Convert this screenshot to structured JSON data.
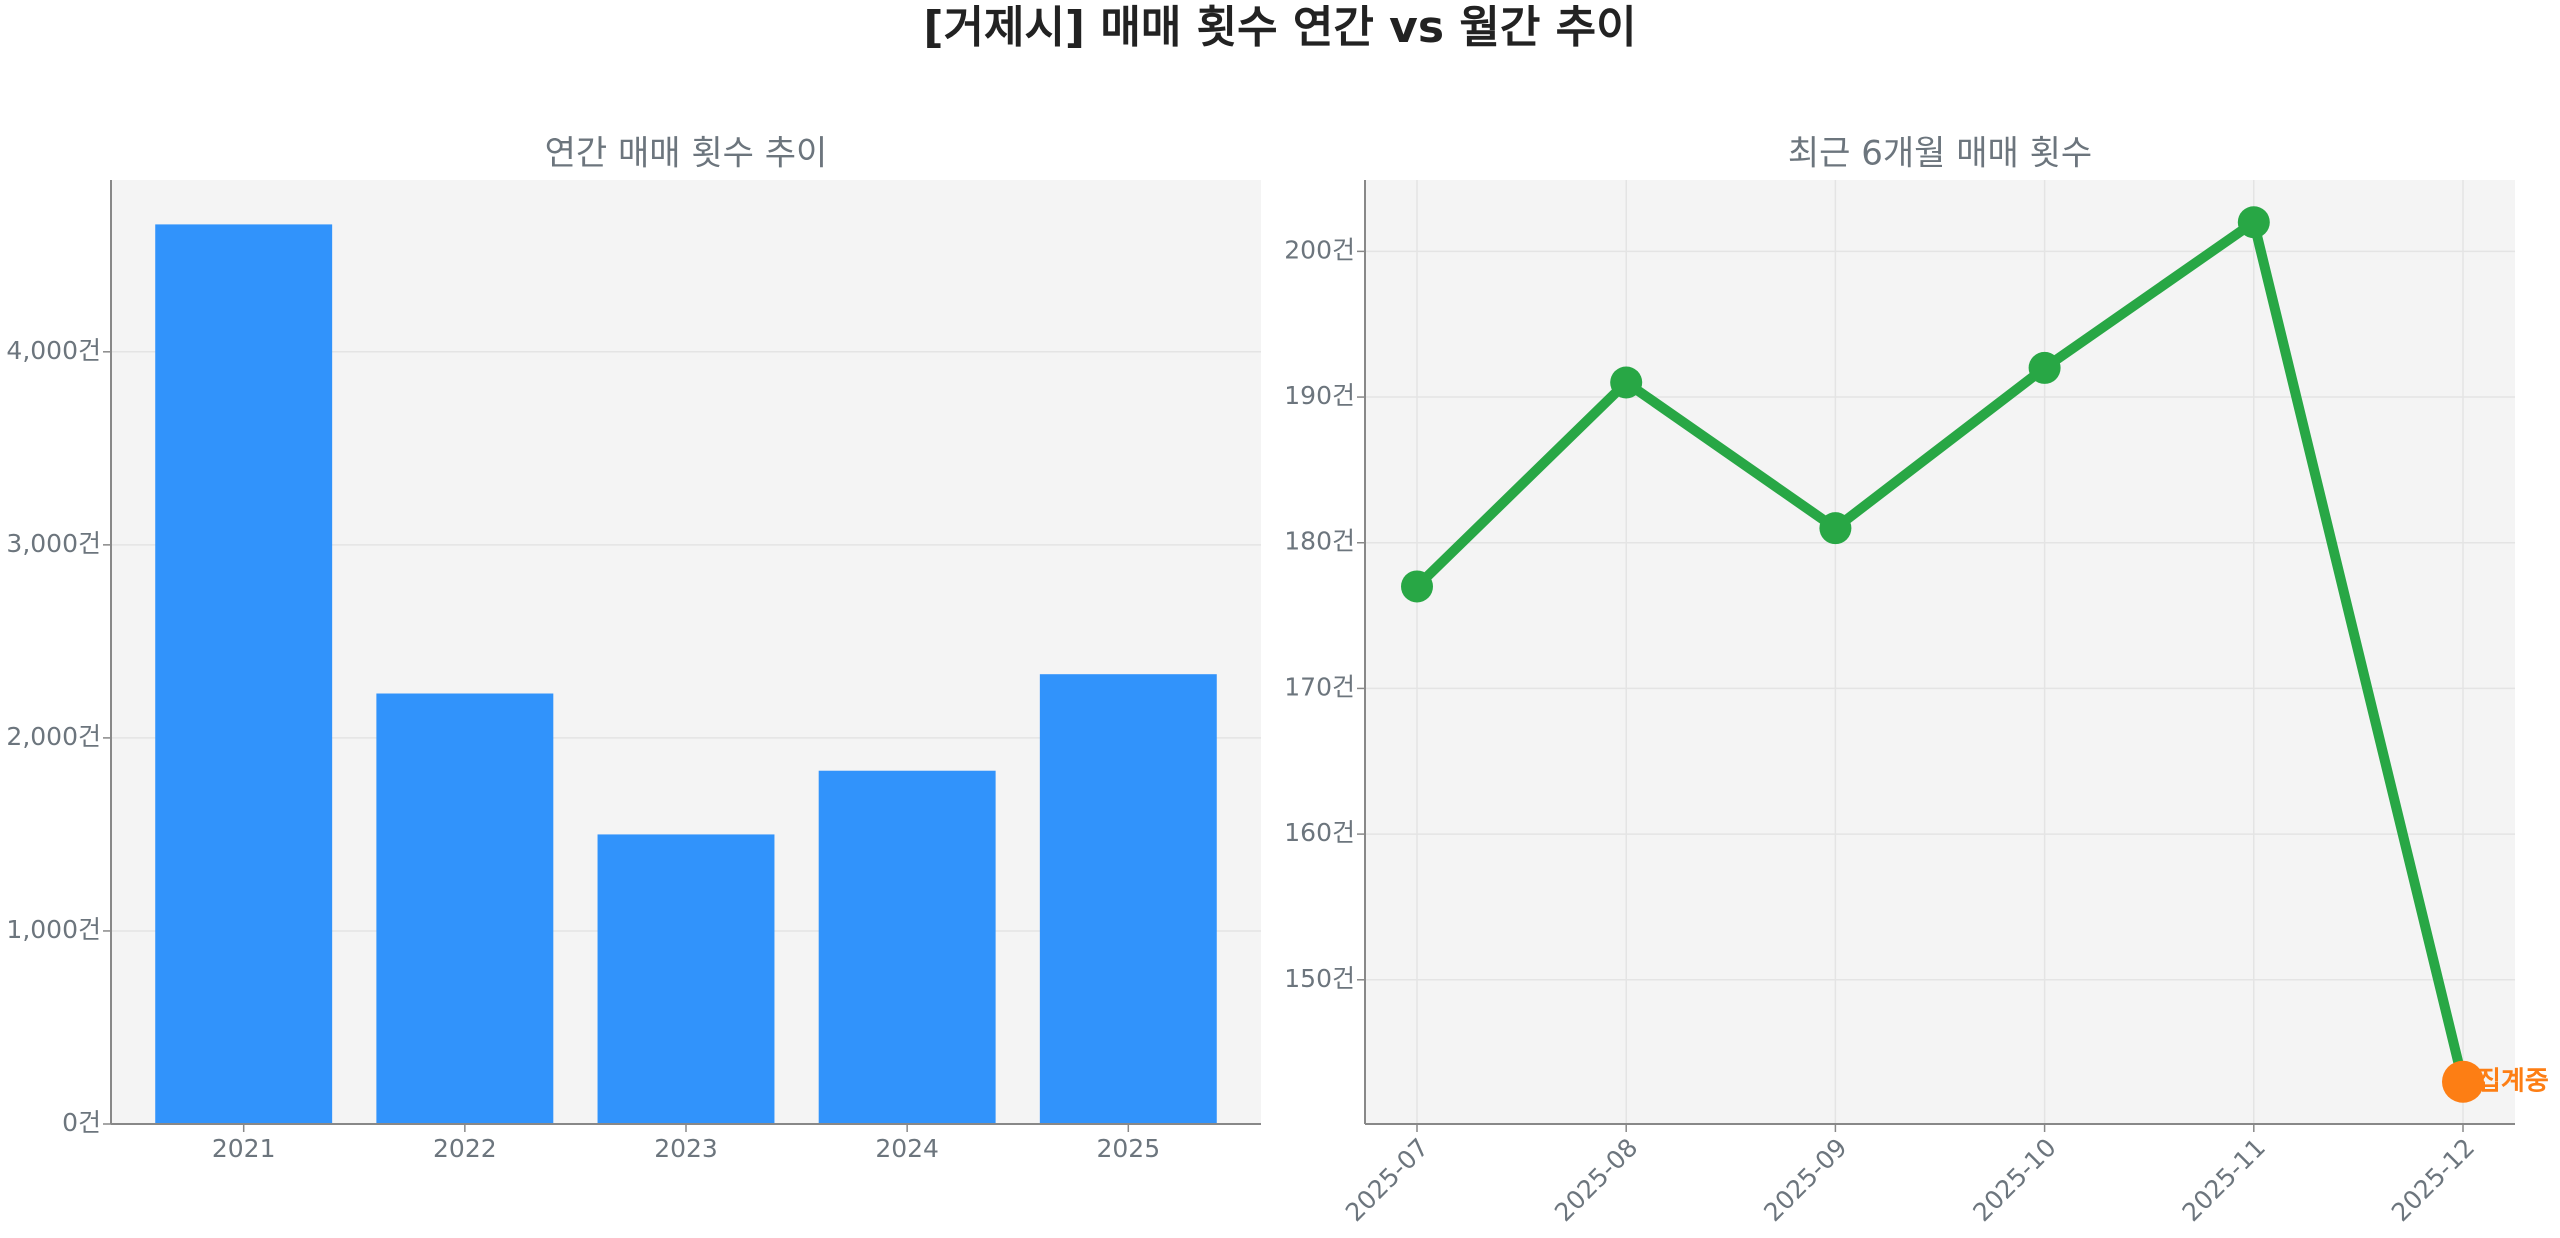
{
  "title": "[거제시] 매매 횟수 연간 vs 월간 추이",
  "chart_data": [
    {
      "type": "bar",
      "title": "연간 매매 횟수 추이",
      "categories": [
        "2021",
        "2022",
        "2023",
        "2024",
        "2025"
      ],
      "values": [
        4660,
        2230,
        1500,
        1830,
        2330
      ],
      "color": "#3193fb",
      "ylim": [
        0,
        4890
      ],
      "yticks": [
        {
          "value": 0,
          "label": "0건"
        },
        {
          "value": 1000,
          "label": "1,000건"
        },
        {
          "value": 2000,
          "label": "2,000건"
        },
        {
          "value": 3000,
          "label": "3,000건"
        },
        {
          "value": 4000,
          "label": "4,000건"
        }
      ],
      "grid": true
    },
    {
      "type": "line",
      "title": "최근 6개월 매매 횟수",
      "categories": [
        "2025-07",
        "2025-08",
        "2025-09",
        "2025-10",
        "2025-11",
        "2025-12"
      ],
      "series": [
        {
          "color": "#28a745",
          "values": [
            177,
            191,
            181,
            192,
            202,
            143
          ]
        }
      ],
      "ylim": [
        140.1,
        204.9
      ],
      "yticks": [
        {
          "value": 150,
          "label": "150건"
        },
        {
          "value": 160,
          "label": "160건"
        },
        {
          "value": 170,
          "label": "170건"
        },
        {
          "value": 180,
          "label": "180건"
        },
        {
          "value": 190,
          "label": "190건"
        },
        {
          "value": 200,
          "label": "200건"
        }
      ],
      "grid": true,
      "annotation": {
        "text": "집계중",
        "color": "#fd7e14"
      }
    }
  ]
}
